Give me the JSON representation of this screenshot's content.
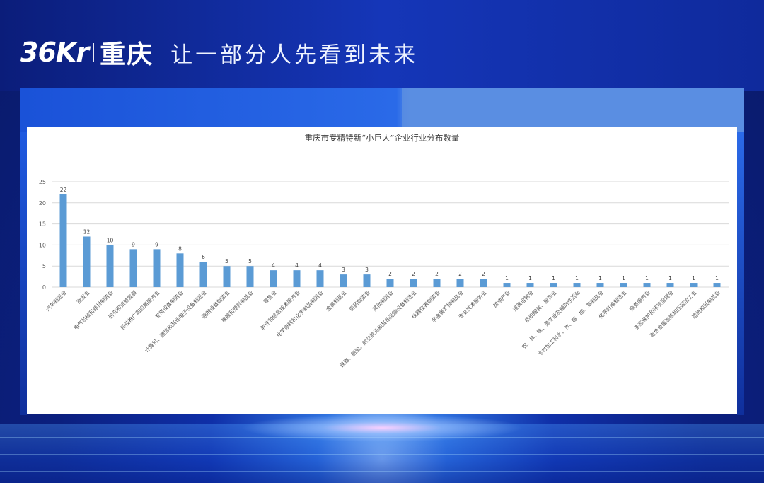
{
  "header": {
    "logo_text": "36Kr",
    "city": "重庆",
    "slogan": "让一部分人先看到未来"
  },
  "colors": {
    "bar": "#5b9bd5",
    "background": "#0b1f7e",
    "grid": "#d9d9d9"
  },
  "chart_data": {
    "type": "bar",
    "title": "重庆市专精特新“小巨人”企业行业分布数量",
    "xlabel": "",
    "ylabel": "",
    "ylim": [
      0,
      25
    ],
    "yticks": [
      0,
      5,
      10,
      15,
      20,
      25
    ],
    "grid": true,
    "legend": "none",
    "categories": [
      "汽车制造业",
      "批发业",
      "电气机械和器材制造业",
      "研究和试验发展",
      "科技推广和应用服务业",
      "专用设备制造业",
      "计算机、通信和其他电子设备制造业",
      "通用设备制造业",
      "橡胶和塑料制品业",
      "零售业",
      "软件和信息技术服务业",
      "化学原料和化学制品制造业",
      "金属制品业",
      "医药制造业",
      "其他制造业",
      "铁路、船舶、航空航天和其他运输设备制造业",
      "仪器仪表制造业",
      "非金属矿物制品业",
      "专业技术服务业",
      "房地产业",
      "道路运输业",
      "纺织服装、服饰业",
      "农、林、牧、渔专业及辅助性活动",
      "木材加工和木、竹、藤、棕、草制品业",
      "化学纤维制造业",
      "商务服务业",
      "生态保护和环境治理业",
      "有色金属冶炼和压延加工业",
      "造纸和纸制品业"
    ],
    "values": [
      22,
      12,
      10,
      9,
      9,
      8,
      6,
      5,
      5,
      4,
      4,
      4,
      3,
      3,
      2,
      2,
      2,
      2,
      2,
      1,
      1,
      1,
      1,
      1,
      1,
      1,
      1,
      1,
      1
    ]
  }
}
